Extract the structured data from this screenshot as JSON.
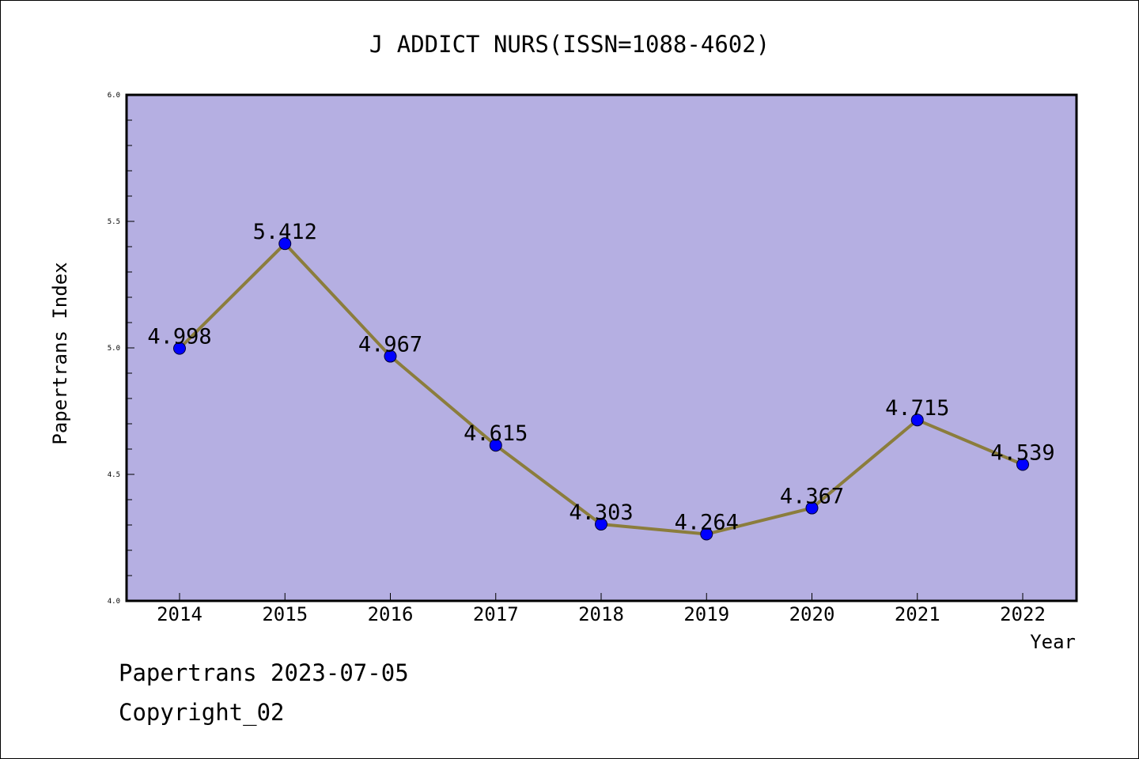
{
  "chart_data": {
    "type": "line",
    "title": "J ADDICT NURS(ISSN=1088-4602)",
    "xlabel": "Year",
    "ylabel": "Papertrans Index",
    "categories": [
      "2014",
      "2015",
      "2016",
      "2017",
      "2018",
      "2019",
      "2020",
      "2021",
      "2022"
    ],
    "series": [
      {
        "values": [
          4.998,
          5.412,
          4.967,
          4.615,
          4.303,
          4.264,
          4.367,
          4.715,
          4.539
        ],
        "labels": [
          "4.998",
          "5.412",
          "4.967",
          "4.615",
          "4.303",
          "4.264",
          "4.367",
          "4.715",
          "4.539"
        ]
      }
    ],
    "ylim": [
      4.0,
      6.0
    ],
    "yticks": [
      "4.0",
      "4.5",
      "5.0",
      "5.5",
      "6.0"
    ],
    "grid": false,
    "colors": {
      "plot_background": "#b5afe2",
      "line": "#8b7d3c",
      "marker": "#0000ff"
    }
  },
  "footer": {
    "date_text": "Papertrans 2023-07-05",
    "copyright_text": "Copyright_02"
  }
}
